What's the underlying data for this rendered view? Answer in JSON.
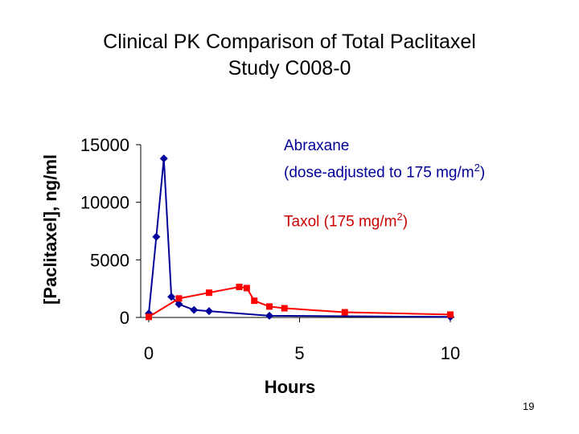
{
  "chart_data": {
    "type": "line",
    "title": "Clinical PK Comparison of Total Paclitaxel",
    "subtitle": "Study C008-0",
    "xlabel": "Hours",
    "ylabel": "[Paclitaxel], ng/ml",
    "xlim": [
      0,
      10
    ],
    "ylim": [
      0,
      15000
    ],
    "xticks": [
      0,
      5,
      10
    ],
    "yticks": [
      0,
      5000,
      10000,
      15000
    ],
    "grid": false,
    "series": [
      {
        "name": "Abraxane",
        "note": "(dose-adjusted to 175 mg/m",
        "sup": "2",
        "note_end": ")",
        "color": "#000099",
        "marker": "diamond",
        "x": [
          0,
          0.25,
          0.5,
          0.75,
          1,
          1.5,
          2,
          4,
          10
        ],
        "y": [
          350,
          7000,
          13800,
          1800,
          1150,
          650,
          550,
          150,
          50
        ]
      },
      {
        "name": "Taxol (175 mg/m",
        "sup": "2",
        "name_end": ")",
        "color": "#ff0000",
        "marker": "square",
        "x": [
          0,
          1,
          2,
          3,
          3.25,
          3.5,
          4,
          4.5,
          6.5,
          10
        ],
        "y": [
          50,
          1650,
          2150,
          2650,
          2550,
          1450,
          950,
          800,
          450,
          250
        ]
      }
    ]
  },
  "page_number": "19"
}
